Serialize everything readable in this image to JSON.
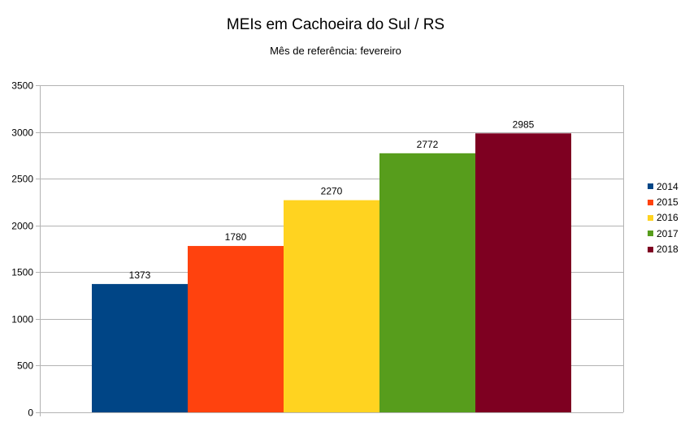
{
  "chart_data": {
    "type": "bar",
    "title": "MEIs em Cachoeira do Sul / RS",
    "subtitle": "Mês de referência: fevereiro",
    "xlabel": "",
    "ylabel": "",
    "ylim": [
      0,
      3500
    ],
    "yticks": [
      "0",
      "500",
      "1000",
      "1500",
      "2000",
      "2500",
      "3000",
      "3500"
    ],
    "grid": true,
    "legend_position": "right",
    "series": [
      {
        "name": "2014",
        "value": 1373,
        "label": "1373",
        "color": "#004586"
      },
      {
        "name": "2015",
        "value": 1780,
        "label": "1780",
        "color": "#ff420e"
      },
      {
        "name": "2016",
        "value": 2270,
        "label": "2270",
        "color": "#ffd320"
      },
      {
        "name": "2017",
        "value": 2772,
        "label": "2772",
        "color": "#579d1c"
      },
      {
        "name": "2018",
        "value": 2985,
        "label": "2985",
        "color": "#7e0021"
      }
    ]
  }
}
